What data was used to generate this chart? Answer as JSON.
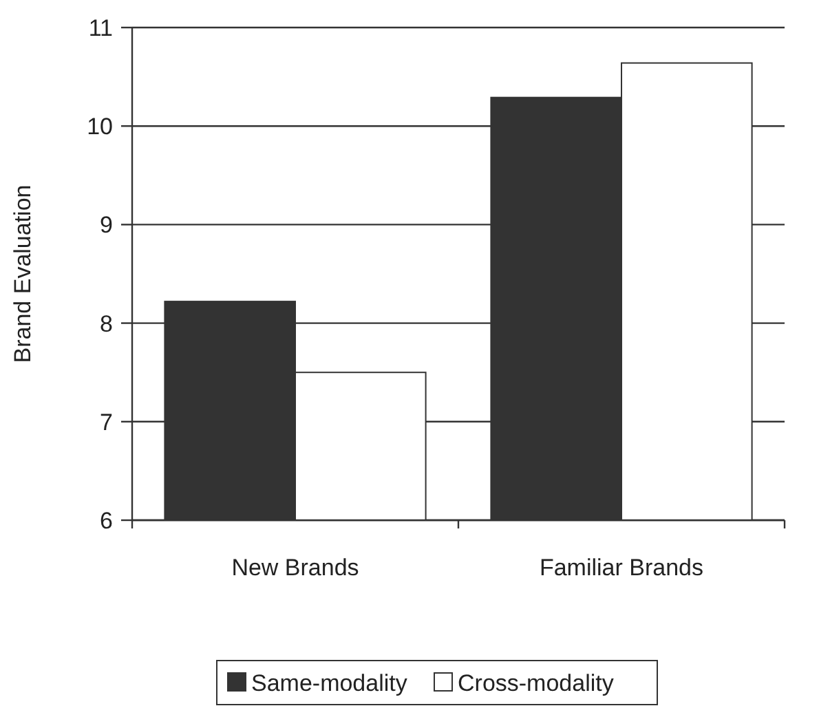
{
  "chart_data": {
    "type": "bar",
    "ylabel": "Brand Evaluation",
    "categories": [
      "New Brands",
      "Familiar Brands"
    ],
    "series": [
      {
        "name": "Same-modality",
        "color": "#333333",
        "values": [
          8.22,
          10.29
        ]
      },
      {
        "name": "Cross-modality",
        "color": "#ffffff",
        "values": [
          7.5,
          10.64
        ]
      }
    ],
    "ylim": [
      6,
      11
    ],
    "yticks": [
      6,
      7,
      8,
      9,
      10,
      11
    ],
    "grid": "y",
    "legend": "bottom"
  }
}
